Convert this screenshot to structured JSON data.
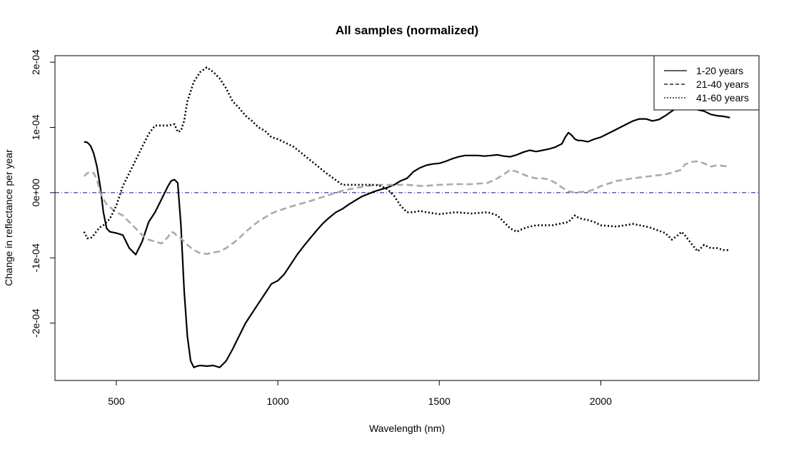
{
  "chart_data": {
    "type": "line",
    "title": "All samples (normalized)",
    "xlabel": "Wavelength (nm)",
    "ylabel": "Change in reflectance per year",
    "xlim": [
      310,
      2490
    ],
    "ylim": [
      -0.000288,
      0.00021
    ],
    "x_ticks": [
      500,
      1000,
      1500,
      2000
    ],
    "x_tick_labels": [
      "500",
      "1000",
      "1500",
      "2000"
    ],
    "y_ticks": [
      -0.0002,
      -0.0001,
      0,
      0.0001,
      0.0002
    ],
    "y_tick_labels": [
      "-2e-04",
      "-1e-04",
      "0e+00",
      "1e-04",
      "2e-04"
    ],
    "legend_position": "top-right",
    "reference_line": {
      "y": 0,
      "color": "#0000cc",
      "style": "dash-dot"
    },
    "series": [
      {
        "name": "1-20 years",
        "legend_style": "solid",
        "color": "#000000",
        "line_style": "solid",
        "x": [
          400,
          410,
          420,
          430,
          440,
          450,
          460,
          470,
          480,
          500,
          520,
          540,
          560,
          580,
          600,
          620,
          640,
          660,
          670,
          680,
          690,
          700,
          710,
          720,
          730,
          740,
          750,
          760,
          780,
          800,
          820,
          840,
          860,
          880,
          900,
          920,
          940,
          960,
          980,
          1000,
          1020,
          1040,
          1060,
          1080,
          1100,
          1120,
          1140,
          1160,
          1180,
          1200,
          1220,
          1240,
          1260,
          1280,
          1300,
          1320,
          1340,
          1360,
          1380,
          1400,
          1420,
          1440,
          1460,
          1480,
          1500,
          1520,
          1540,
          1560,
          1580,
          1600,
          1620,
          1640,
          1660,
          1680,
          1700,
          1720,
          1740,
          1760,
          1780,
          1800,
          1820,
          1840,
          1860,
          1880,
          1890,
          1900,
          1910,
          1920,
          1930,
          1940,
          1960,
          1980,
          2000,
          2020,
          2040,
          2060,
          2080,
          2100,
          2120,
          2140,
          2160,
          2180,
          2200,
          2220,
          2240,
          2260,
          2280,
          2300,
          2320,
          2340,
          2360,
          2380,
          2400
        ],
        "y": [
          7.8e-05,
          7.7e-05,
          7.2e-05,
          6e-05,
          4e-05,
          1e-05,
          -3e-05,
          -5.5e-05,
          -6e-05,
          -6.2e-05,
          -6.5e-05,
          -8.5e-05,
          -9.5e-05,
          -7.5e-05,
          -4.5e-05,
          -3e-05,
          -1e-05,
          1e-05,
          1.8e-05,
          2e-05,
          1.5e-05,
          -5e-05,
          -0.00015,
          -0.00022,
          -0.000258,
          -0.000268,
          -0.000266,
          -0.000265,
          -0.000266,
          -0.000265,
          -0.000268,
          -0.000258,
          -0.00024,
          -0.00022,
          -0.0002,
          -0.000185,
          -0.00017,
          -0.000155,
          -0.00014,
          -0.000135,
          -0.000125,
          -0.00011,
          -9.5e-05,
          -8.2e-05,
          -7e-05,
          -5.8e-05,
          -4.7e-05,
          -3.8e-05,
          -3e-05,
          -2.5e-05,
          -1.8e-05,
          -1.2e-05,
          -6e-06,
          -2e-06,
          2e-06,
          5e-06,
          8e-06,
          1.2e-05,
          1.8e-05,
          2.2e-05,
          3.2e-05,
          3.8e-05,
          4.2e-05,
          4.4e-05,
          4.5e-05,
          4.8e-05,
          5.2e-05,
          5.5e-05,
          5.7e-05,
          5.7e-05,
          5.7e-05,
          5.6e-05,
          5.7e-05,
          5.8e-05,
          5.6e-05,
          5.5e-05,
          5.8e-05,
          6.2e-05,
          6.5e-05,
          6.3e-05,
          6.5e-05,
          6.7e-05,
          7e-05,
          7.5e-05,
          8.5e-05,
          9.2e-05,
          8.8e-05,
          8.2e-05,
          8e-05,
          8e-05,
          7.8e-05,
          8.2e-05,
          8.5e-05,
          9e-05,
          9.5e-05,
          0.0001,
          0.000105,
          0.00011,
          0.000113,
          0.000113,
          0.00011,
          0.000112,
          0.000118,
          0.000125,
          0.000132,
          0.000135,
          0.000132,
          0.000127,
          0.000125,
          0.00012,
          0.000118,
          0.000117,
          0.000115
        ]
      },
      {
        "name": "21-40 years",
        "legend_style": "dashed",
        "color": "#aaaaaa",
        "line_style": "dashed",
        "x": [
          400,
          410,
          420,
          430,
          440,
          450,
          460,
          470,
          480,
          500,
          520,
          540,
          560,
          580,
          600,
          620,
          640,
          660,
          670,
          680,
          690,
          700,
          720,
          740,
          760,
          780,
          800,
          820,
          840,
          860,
          880,
          900,
          920,
          940,
          960,
          980,
          1000,
          1050,
          1100,
          1150,
          1200,
          1250,
          1300,
          1350,
          1400,
          1450,
          1500,
          1550,
          1600,
          1650,
          1680,
          1700,
          1720,
          1740,
          1760,
          1780,
          1800,
          1820,
          1840,
          1860,
          1880,
          1900,
          1920,
          1940,
          1960,
          1980,
          2000,
          2050,
          2100,
          2150,
          2200,
          2250,
          2260,
          2280,
          2300,
          2320,
          2340,
          2360,
          2380,
          2400
        ],
        "y": [
          2.5e-05,
          3e-05,
          3.2e-05,
          3e-05,
          2e-05,
          0.0,
          -1e-05,
          -1.8e-05,
          -2.2e-05,
          -3e-05,
          -3.5e-05,
          -4.5e-05,
          -5.5e-05,
          -6.5e-05,
          -7.2e-05,
          -7.5e-05,
          -7.8e-05,
          -6.8e-05,
          -6e-05,
          -6.2e-05,
          -6.8e-05,
          -7e-05,
          -8e-05,
          -8.8e-05,
          -9.3e-05,
          -9.4e-05,
          -9.2e-05,
          -9e-05,
          -8.5e-05,
          -7.8e-05,
          -7e-05,
          -6e-05,
          -5.2e-05,
          -4.4e-05,
          -3.8e-05,
          -3.2e-05,
          -2.8e-05,
          -2e-05,
          -1.3e-05,
          -5e-06,
          3e-06,
          8e-06,
          1.2e-05,
          1.2e-05,
          1.2e-05,
          1e-05,
          1.2e-05,
          1.3e-05,
          1.3e-05,
          1.5e-05,
          2.2e-05,
          2.8e-05,
          3.5e-05,
          3.2e-05,
          2.8e-05,
          2.4e-05,
          2.2e-05,
          2.2e-05,
          2e-05,
          1.5e-05,
          8e-06,
          2e-06,
          0.0,
          1e-06,
          2e-06,
          5e-06,
          1e-05,
          1.8e-05,
          2.2e-05,
          2.5e-05,
          2.8e-05,
          3.5e-05,
          4.3e-05,
          4.7e-05,
          4.8e-05,
          4.5e-05,
          4e-05,
          4.2e-05,
          4.1e-05,
          4e-05
        ]
      },
      {
        "name": "41-60 years",
        "legend_style": "dotted",
        "color": "#000000",
        "line_style": "dotted",
        "x": [
          400,
          410,
          420,
          430,
          440,
          450,
          460,
          470,
          480,
          490,
          500,
          520,
          540,
          560,
          580,
          600,
          620,
          640,
          660,
          680,
          690,
          700,
          710,
          720,
          740,
          760,
          780,
          800,
          820,
          840,
          860,
          880,
          900,
          920,
          940,
          960,
          980,
          1000,
          1050,
          1100,
          1150,
          1200,
          1250,
          1300,
          1320,
          1340,
          1360,
          1380,
          1400,
          1420,
          1440,
          1460,
          1500,
          1550,
          1600,
          1650,
          1680,
          1700,
          1720,
          1740,
          1760,
          1780,
          1800,
          1850,
          1900,
          1910,
          1920,
          1930,
          1940,
          1960,
          1980,
          2000,
          2050,
          2100,
          2150,
          2200,
          2220,
          2240,
          2250,
          2260,
          2280,
          2300,
          2320,
          2340,
          2360,
          2380,
          2400
        ],
        "y": [
          -6e-05,
          -7e-05,
          -7e-05,
          -6.5e-05,
          -5.8e-05,
          -5.3e-05,
          -5e-05,
          -4.5e-05,
          -4e-05,
          -3e-05,
          -2e-05,
          1e-05,
          3e-05,
          5e-05,
          7e-05,
          9e-05,
          0.000103,
          0.000103,
          0.000103,
          0.000105,
          9.3e-05,
          9.5e-05,
          0.00011,
          0.00014,
          0.00017,
          0.000185,
          0.000192,
          0.000185,
          0.000175,
          0.00016,
          0.00014,
          0.00013,
          0.000118,
          0.00011,
          0.0001,
          9.5e-05,
          8.5e-05,
          8.2e-05,
          7e-05,
          5e-05,
          3e-05,
          1.2e-05,
          1.2e-05,
          1.2e-05,
          1e-05,
          5e-06,
          -5e-06,
          -2e-05,
          -3e-05,
          -3e-05,
          -2.8e-05,
          -3e-05,
          -3.3e-05,
          -3e-05,
          -3.2e-05,
          -3e-05,
          -3.5e-05,
          -4.5e-05,
          -5.5e-05,
          -6e-05,
          -5.5e-05,
          -5.2e-05,
          -5e-05,
          -5e-05,
          -4.5e-05,
          -4e-05,
          -3.5e-05,
          -3.8e-05,
          -4e-05,
          -4.2e-05,
          -4.5e-05,
          -5e-05,
          -5.2e-05,
          -4.8e-05,
          -5.3e-05,
          -6.2e-05,
          -7.2e-05,
          -6.5e-05,
          -6e-05,
          -6.5e-05,
          -7.8e-05,
          -9e-05,
          -8e-05,
          -8.5e-05,
          -8.5e-05,
          -8.8e-05,
          -8.8e-05
        ]
      }
    ]
  }
}
